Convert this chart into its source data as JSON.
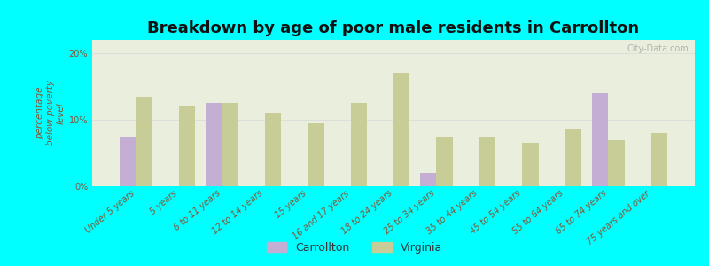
{
  "title": "Breakdown by age of poor male residents in Carrollton",
  "ylabel": "percentage\nbelow poverty\nlevel",
  "background_color": "#00FFFF",
  "plot_bg_color": "#eaeedc",
  "watermark": "City-Data.com",
  "categories": [
    "Under 5 years",
    "5 years",
    "6 to 11 years",
    "12 to 14 years",
    "15 years",
    "16 and 17 years",
    "18 to 24 years",
    "25 to 34 years",
    "35 to 44 years",
    "45 to 54 years",
    "55 to 64 years",
    "65 to 74 years",
    "75 years and over"
  ],
  "carrollton": [
    7.5,
    0,
    12.5,
    0,
    0,
    0,
    0,
    2.0,
    0,
    0,
    0,
    14.0,
    0
  ],
  "virginia": [
    13.5,
    12.0,
    12.5,
    11.0,
    9.5,
    12.5,
    17.0,
    7.5,
    7.5,
    6.5,
    8.5,
    7.0,
    8.0
  ],
  "carrollton_color": "#c4aed4",
  "virginia_color": "#c8cc96",
  "ylim": [
    0,
    22
  ],
  "yticks": [
    0,
    10,
    20
  ],
  "ytick_labels": [
    "0%",
    "10%",
    "20%"
  ],
  "bar_width": 0.38,
  "title_fontsize": 13,
  "axis_label_fontsize": 7.5,
  "tick_fontsize": 7,
  "legend_fontsize": 9,
  "label_color": "#885533",
  "title_color": "#111111"
}
